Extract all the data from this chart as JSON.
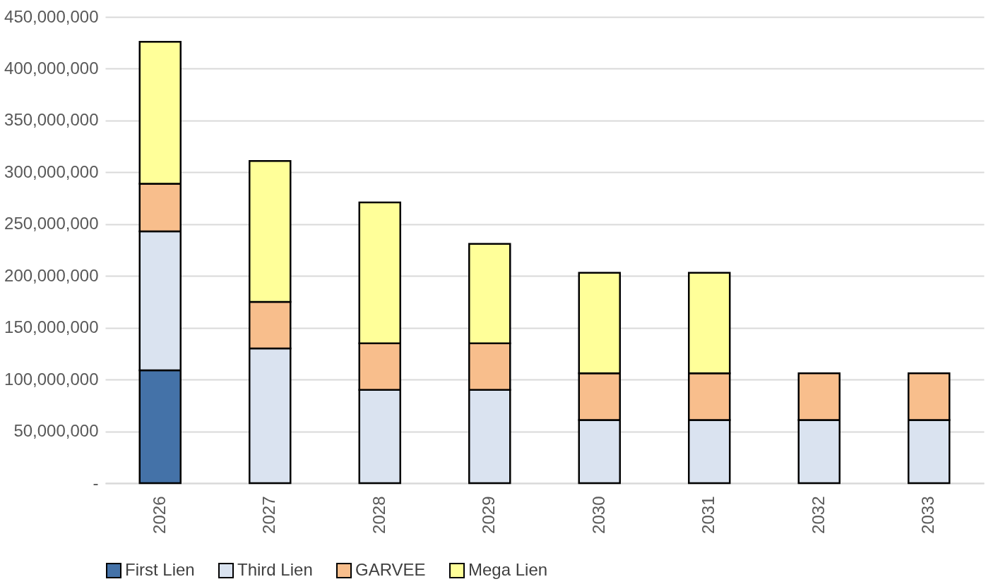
{
  "chart_data": {
    "type": "bar",
    "stacked": true,
    "categories": [
      "2026",
      "2027",
      "2028",
      "2029",
      "2030",
      "2031",
      "2032",
      "2033"
    ],
    "series": [
      {
        "name": "First Lien",
        "color": "#4472a8",
        "values": [
          109000000,
          null,
          null,
          null,
          null,
          null,
          null,
          null
        ]
      },
      {
        "name": "Third Lien",
        "color": "#dae3f0",
        "values": [
          134000000,
          130000000,
          90000000,
          90000000,
          61000000,
          61000000,
          61000000,
          61000000
        ]
      },
      {
        "name": "GARVEE",
        "color": "#f8be8c",
        "values": [
          46000000,
          45000000,
          45000000,
          45000000,
          45000000,
          45000000,
          45000000,
          45000000
        ]
      },
      {
        "name": "Mega Lien",
        "color": "#ffff99",
        "values": [
          137000000,
          136000000,
          136000000,
          96000000,
          97000000,
          97000000,
          null,
          null
        ]
      }
    ],
    "ylim": [
      0,
      450000000
    ],
    "yticks": [
      {
        "value": 0,
        "label": "-"
      },
      {
        "value": 50000000,
        "label": "50,000,000"
      },
      {
        "value": 100000000,
        "label": "100,000,000"
      },
      {
        "value": 150000000,
        "label": "150,000,000"
      },
      {
        "value": 200000000,
        "label": "200,000,000"
      },
      {
        "value": 250000000,
        "label": "250,000,000"
      },
      {
        "value": 300000000,
        "label": "300,000,000"
      },
      {
        "value": 350000000,
        "label": "350,000,000"
      },
      {
        "value": 400000000,
        "label": "400,000,000"
      },
      {
        "value": 450000000,
        "label": "450,000,000"
      }
    ],
    "grid": "y",
    "legend": "bottom"
  }
}
